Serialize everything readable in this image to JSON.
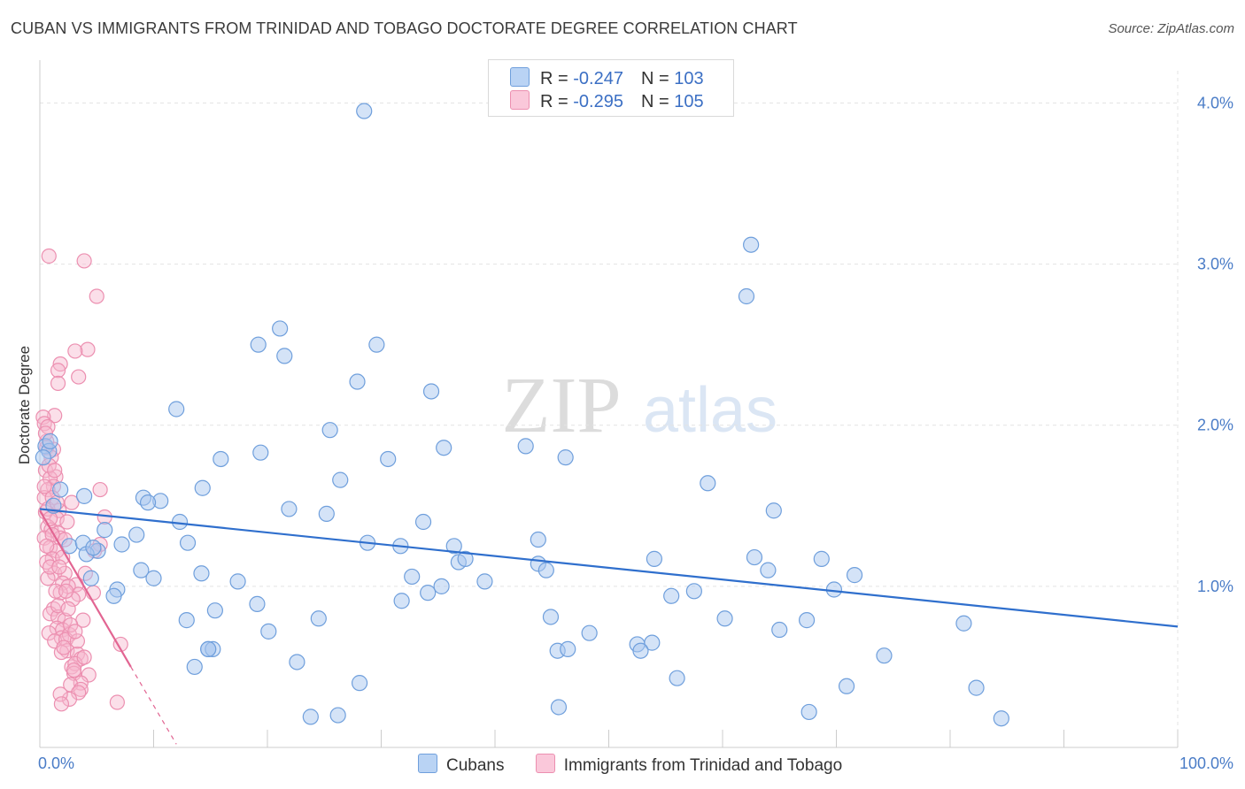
{
  "header": {
    "title": "CUBAN VS IMMIGRANTS FROM TRINIDAD AND TOBAGO DOCTORATE DEGREE CORRELATION CHART",
    "source": "Source: ZipAtlas.com"
  },
  "watermark": {
    "zip": "ZIP",
    "atlas": "atlas"
  },
  "legend": {
    "rows": [
      {
        "r_label": "R = ",
        "r_value": "-0.247",
        "n_label": "N = ",
        "n_value": "103"
      },
      {
        "r_label": "R = ",
        "r_value": "-0.295",
        "n_label": "N = ",
        "n_value": "105"
      }
    ]
  },
  "colors": {
    "blue_fill": "#a9c8f0",
    "blue_stroke": "#6f9fdc",
    "blue_line": "#2f6fcd",
    "pink_fill": "#f7b9cf",
    "pink_stroke": "#ec8fb0",
    "pink_line": "#e26592",
    "tick_label": "#4a7cc7",
    "grid": "#e3e3e3"
  },
  "chart_data": {
    "type": "scatter",
    "title": "CUBAN VS IMMIGRANTS FROM TRINIDAD AND TOBAGO DOCTORATE DEGREE CORRELATION CHART",
    "xlabel": "",
    "ylabel": "Doctorate Degree",
    "xlim": [
      0,
      100
    ],
    "ylim": [
      0,
      4.2
    ],
    "x_tick_labels": [
      "0.0%",
      "100.0%"
    ],
    "y_ticks": [
      1,
      2,
      3,
      4
    ],
    "y_tick_labels": [
      "1.0%",
      "2.0%",
      "3.0%",
      "4.0%"
    ],
    "grid": true,
    "legend_position": "top-center",
    "series": [
      {
        "name": "Cubans",
        "color": "#a9c8f0",
        "trend": {
          "x": [
            0,
            100
          ],
          "y": [
            1.48,
            0.75
          ]
        },
        "points": [
          [
            28.5,
            3.95
          ],
          [
            62.5,
            3.12
          ],
          [
            62.1,
            2.8
          ],
          [
            21.1,
            2.6
          ],
          [
            19.2,
            2.5
          ],
          [
            29.6,
            2.5
          ],
          [
            21.5,
            2.43
          ],
          [
            27.9,
            2.27
          ],
          [
            34.4,
            2.21
          ],
          [
            12.0,
            2.1
          ],
          [
            25.5,
            1.97
          ],
          [
            35.5,
            1.86
          ],
          [
            42.7,
            1.87
          ],
          [
            19.4,
            1.83
          ],
          [
            15.9,
            1.79
          ],
          [
            30.6,
            1.79
          ],
          [
            46.2,
            1.8
          ],
          [
            0.5,
            1.87
          ],
          [
            0.8,
            1.84
          ],
          [
            0.3,
            1.8
          ],
          [
            26.4,
            1.66
          ],
          [
            58.7,
            1.64
          ],
          [
            14.3,
            1.61
          ],
          [
            1.8,
            1.6
          ],
          [
            3.9,
            1.56
          ],
          [
            9.1,
            1.55
          ],
          [
            10.6,
            1.53
          ],
          [
            21.9,
            1.48
          ],
          [
            25.2,
            1.45
          ],
          [
            33.7,
            1.4
          ],
          [
            64.5,
            1.47
          ],
          [
            12.3,
            1.4
          ],
          [
            5.7,
            1.35
          ],
          [
            7.2,
            1.26
          ],
          [
            8.5,
            1.32
          ],
          [
            13.0,
            1.27
          ],
          [
            5.1,
            1.22
          ],
          [
            2.6,
            1.25
          ],
          [
            3.8,
            1.27
          ],
          [
            28.8,
            1.27
          ],
          [
            31.7,
            1.25
          ],
          [
            36.4,
            1.25
          ],
          [
            36.8,
            1.15
          ],
          [
            37.4,
            1.17
          ],
          [
            43.8,
            1.29
          ],
          [
            43.8,
            1.14
          ],
          [
            44.5,
            1.1
          ],
          [
            54.0,
            1.17
          ],
          [
            62.8,
            1.18
          ],
          [
            64.0,
            1.1
          ],
          [
            68.7,
            1.17
          ],
          [
            71.6,
            1.07
          ],
          [
            4.1,
            1.2
          ],
          [
            4.7,
            1.24
          ],
          [
            8.9,
            1.1
          ],
          [
            10.0,
            1.05
          ],
          [
            14.2,
            1.08
          ],
          [
            17.4,
            1.03
          ],
          [
            32.7,
            1.06
          ],
          [
            34.1,
            0.96
          ],
          [
            35.3,
            1.0
          ],
          [
            39.1,
            1.03
          ],
          [
            4.5,
            1.05
          ],
          [
            6.8,
            0.98
          ],
          [
            6.5,
            0.94
          ],
          [
            55.5,
            0.94
          ],
          [
            57.5,
            0.97
          ],
          [
            69.8,
            0.98
          ],
          [
            19.1,
            0.89
          ],
          [
            31.8,
            0.91
          ],
          [
            15.4,
            0.85
          ],
          [
            12.9,
            0.79
          ],
          [
            24.5,
            0.8
          ],
          [
            44.9,
            0.81
          ],
          [
            60.2,
            0.8
          ],
          [
            67.4,
            0.79
          ],
          [
            81.2,
            0.77
          ],
          [
            20.1,
            0.72
          ],
          [
            48.3,
            0.71
          ],
          [
            65.0,
            0.73
          ],
          [
            52.5,
            0.64
          ],
          [
            53.8,
            0.65
          ],
          [
            52.8,
            0.6
          ],
          [
            45.5,
            0.6
          ],
          [
            46.4,
            0.61
          ],
          [
            14.8,
            0.61
          ],
          [
            15.2,
            0.61
          ],
          [
            22.6,
            0.53
          ],
          [
            14.8,
            0.61
          ],
          [
            74.2,
            0.57
          ],
          [
            13.6,
            0.5
          ],
          [
            56.0,
            0.43
          ],
          [
            28.1,
            0.4
          ],
          [
            70.9,
            0.38
          ],
          [
            82.3,
            0.37
          ],
          [
            45.6,
            0.25
          ],
          [
            67.6,
            0.22
          ],
          [
            23.8,
            0.19
          ],
          [
            26.2,
            0.2
          ],
          [
            84.5,
            0.18
          ],
          [
            0.9,
            1.9
          ],
          [
            1.2,
            1.5
          ],
          [
            9.5,
            1.52
          ]
        ]
      },
      {
        "name": "Immigrants from Trinidad and Tobago",
        "color": "#f7b9cf",
        "trend": {
          "x": [
            0,
            8
          ],
          "y": [
            1.47,
            0.5
          ]
        },
        "trend_extension": {
          "x": [
            8,
            12
          ],
          "y": [
            0.5,
            0.02
          ]
        },
        "points": [
          [
            0.8,
            3.05
          ],
          [
            3.9,
            3.02
          ],
          [
            5.0,
            2.8
          ],
          [
            4.2,
            2.47
          ],
          [
            3.1,
            2.46
          ],
          [
            1.8,
            2.38
          ],
          [
            1.6,
            2.34
          ],
          [
            3.4,
            2.3
          ],
          [
            1.6,
            2.26
          ],
          [
            1.3,
            2.06
          ],
          [
            0.3,
            2.05
          ],
          [
            0.4,
            2.01
          ],
          [
            0.7,
            1.99
          ],
          [
            0.6,
            1.86
          ],
          [
            1.2,
            1.85
          ],
          [
            1.0,
            1.8
          ],
          [
            0.5,
            1.72
          ],
          [
            1.4,
            1.68
          ],
          [
            0.9,
            1.67
          ],
          [
            1.2,
            1.62
          ],
          [
            0.7,
            1.6
          ],
          [
            5.3,
            1.6
          ],
          [
            0.4,
            1.55
          ],
          [
            2.8,
            1.52
          ],
          [
            1.7,
            1.47
          ],
          [
            0.5,
            1.46
          ],
          [
            5.7,
            1.43
          ],
          [
            1.5,
            1.42
          ],
          [
            0.7,
            1.37
          ],
          [
            1.0,
            1.35
          ],
          [
            1.6,
            1.33
          ],
          [
            0.4,
            1.3
          ],
          [
            1.8,
            1.3
          ],
          [
            2.2,
            1.29
          ],
          [
            5.3,
            1.26
          ],
          [
            0.9,
            1.24
          ],
          [
            1.5,
            1.22
          ],
          [
            4.8,
            1.22
          ],
          [
            1.1,
            1.17
          ],
          [
            0.6,
            1.15
          ],
          [
            1.3,
            1.08
          ],
          [
            2.2,
            1.08
          ],
          [
            4.0,
            1.08
          ],
          [
            0.7,
            1.05
          ],
          [
            2.0,
            1.02
          ],
          [
            3.2,
            1.01
          ],
          [
            2.5,
            1.0
          ],
          [
            1.8,
            0.96
          ],
          [
            3.4,
            0.95
          ],
          [
            4.7,
            0.96
          ],
          [
            2.9,
            0.92
          ],
          [
            1.2,
            0.86
          ],
          [
            0.9,
            0.83
          ],
          [
            1.6,
            0.81
          ],
          [
            2.2,
            0.79
          ],
          [
            3.8,
            0.79
          ],
          [
            1.5,
            0.74
          ],
          [
            2.0,
            0.73
          ],
          [
            0.8,
            0.71
          ],
          [
            1.9,
            0.68
          ],
          [
            2.6,
            0.7
          ],
          [
            1.3,
            0.66
          ],
          [
            2.3,
            0.67
          ],
          [
            7.1,
            0.64
          ],
          [
            2.4,
            0.6
          ],
          [
            3.3,
            0.58
          ],
          [
            1.9,
            0.59
          ],
          [
            3.6,
            0.55
          ],
          [
            2.8,
            0.5
          ],
          [
            3.1,
            0.52
          ],
          [
            3.0,
            0.46
          ],
          [
            4.3,
            0.45
          ],
          [
            3.6,
            0.4
          ],
          [
            2.7,
            0.39
          ],
          [
            3.6,
            0.36
          ],
          [
            3.4,
            0.34
          ],
          [
            2.6,
            0.3
          ],
          [
            1.8,
            0.33
          ],
          [
            1.9,
            0.27
          ],
          [
            6.8,
            0.28
          ],
          [
            0.6,
            1.9
          ],
          [
            0.8,
            1.75
          ],
          [
            1.1,
            1.55
          ],
          [
            2.4,
            1.4
          ],
          [
            0.9,
            1.12
          ],
          [
            1.6,
            0.88
          ],
          [
            2.1,
            0.62
          ],
          [
            3.0,
            0.48
          ],
          [
            0.5,
            1.95
          ],
          [
            1.3,
            1.72
          ],
          [
            0.7,
            1.48
          ],
          [
            2.0,
            1.18
          ],
          [
            1.4,
            0.97
          ],
          [
            2.7,
            0.76
          ],
          [
            3.9,
            0.56
          ],
          [
            1.1,
            1.32
          ],
          [
            0.4,
            1.62
          ],
          [
            1.7,
            1.12
          ],
          [
            2.5,
            0.86
          ],
          [
            3.3,
            0.66
          ],
          [
            0.9,
            1.42
          ],
          [
            1.5,
            1.52
          ],
          [
            2.3,
            0.97
          ],
          [
            3.1,
            0.72
          ],
          [
            0.6,
            1.25
          ]
        ]
      }
    ]
  },
  "bottom_legend": {
    "items": [
      {
        "label": "Cubans"
      },
      {
        "label": "Immigrants from Trinidad and Tobago"
      }
    ]
  }
}
